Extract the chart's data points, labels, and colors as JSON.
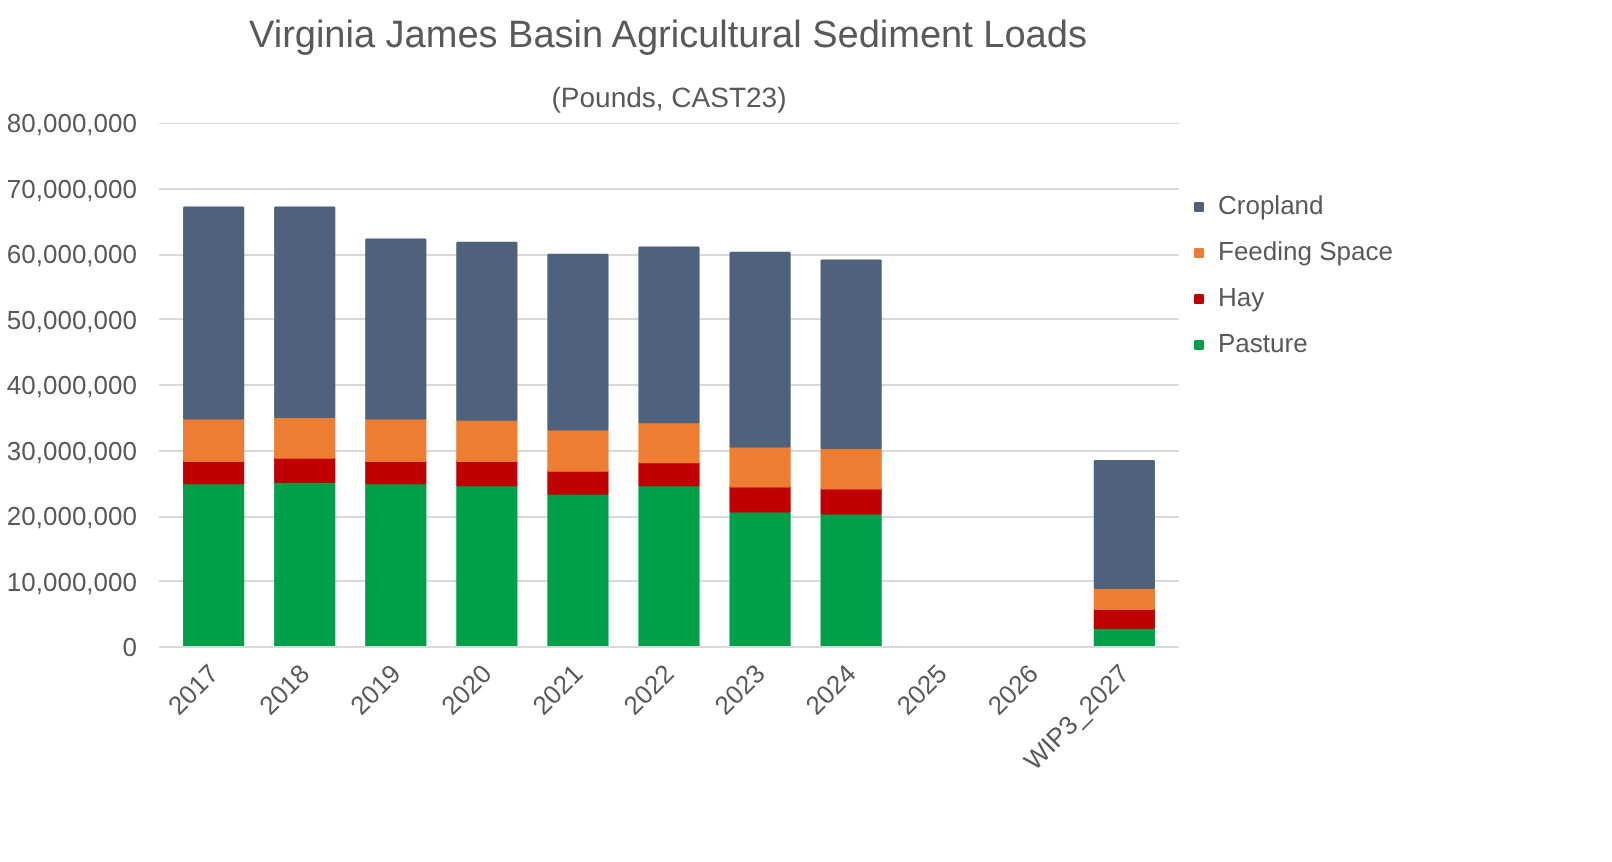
{
  "chart_data": {
    "type": "bar",
    "title": "Virginia James Basin Agricultural Sediment Loads",
    "subtitle": "(Pounds, CAST23)",
    "categories": [
      "2017",
      "2018",
      "2019",
      "2020",
      "2021",
      "2022",
      "2023",
      "2024",
      "2025",
      "2026",
      "WIP3_2027"
    ],
    "stacked": true,
    "legend": "right",
    "grid": "y",
    "ylim": [
      0,
      80000000
    ],
    "yticks": [
      {
        "value": 0,
        "label": "0"
      },
      {
        "value": 10000000,
        "label": "10,000,000"
      },
      {
        "value": 20000000,
        "label": "20,000,000"
      },
      {
        "value": 30000000,
        "label": "30,000,000"
      },
      {
        "value": 40000000,
        "label": "40,000,000"
      },
      {
        "value": 50000000,
        "label": "50,000,000"
      },
      {
        "value": 60000000,
        "label": "60,000,000"
      },
      {
        "value": 70000000,
        "label": "70,000,000"
      },
      {
        "value": 80000000,
        "label": "80,000,000"
      }
    ],
    "series": [
      {
        "name": "Pasture",
        "color": "#00a04a",
        "values": [
          25000000,
          25200000,
          25000000,
          24700000,
          23400000,
          24700000,
          20700000,
          20400000,
          null,
          null,
          2900000
        ]
      },
      {
        "name": "Hay",
        "color": "#c00000",
        "values": [
          3400000,
          3700000,
          3400000,
          3700000,
          3500000,
          3500000,
          3800000,
          3800000,
          null,
          null,
          2900000
        ]
      },
      {
        "name": "Feeding Space",
        "color": "#ed7d31",
        "values": [
          6500000,
          6200000,
          6500000,
          6300000,
          6300000,
          6100000,
          6100000,
          6200000,
          null,
          null,
          3200000
        ]
      },
      {
        "name": "Cropland",
        "color": "#4f627d",
        "values": [
          32200000,
          32000000,
          27300000,
          27000000,
          26700000,
          26700000,
          29600000,
          28600000,
          null,
          null,
          19400000
        ]
      }
    ]
  }
}
